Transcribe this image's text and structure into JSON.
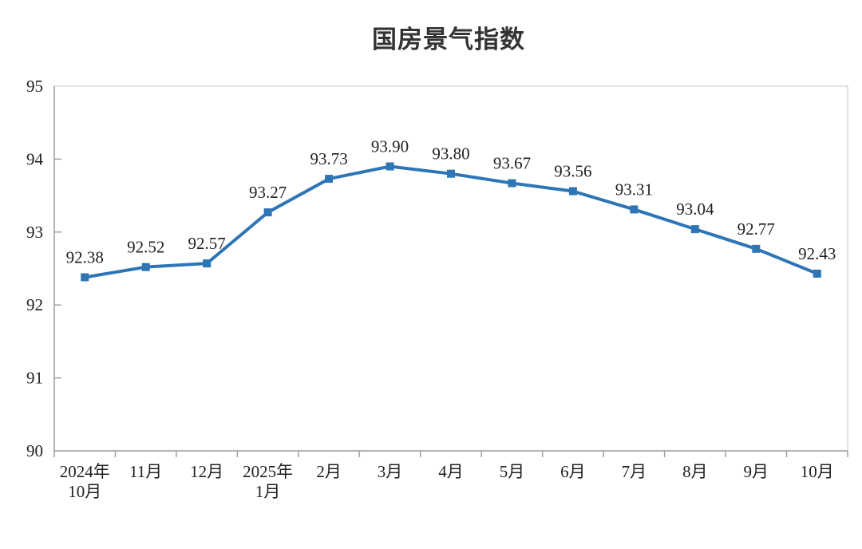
{
  "page": {
    "background": "#ffffff"
  },
  "chart_data": {
    "type": "line",
    "title": "国房景气指数",
    "categories": [
      [
        "2024年",
        "10月"
      ],
      [
        "11月"
      ],
      [
        "12月"
      ],
      [
        "2025年",
        "1月"
      ],
      [
        "2月"
      ],
      [
        "3月"
      ],
      [
        "4月"
      ],
      [
        "5月"
      ],
      [
        "6月"
      ],
      [
        "7月"
      ],
      [
        "8月"
      ],
      [
        "9月"
      ],
      [
        "10月"
      ]
    ],
    "values": [
      92.38,
      92.52,
      92.57,
      93.27,
      93.73,
      93.9,
      93.8,
      93.67,
      93.56,
      93.31,
      93.04,
      92.77,
      92.43
    ],
    "data_labels": [
      "92.38",
      "92.52",
      "92.57",
      "93.27",
      "93.73",
      "93.90",
      "93.80",
      "93.67",
      "93.56",
      "93.31",
      "93.04",
      "92.77",
      "92.43"
    ],
    "ylim": [
      90,
      95
    ],
    "yticks": [
      90,
      91,
      92,
      93,
      94,
      95
    ],
    "xlabel": "",
    "ylabel": "",
    "legend": "none",
    "grid": false,
    "marker": "square",
    "colors": {
      "line": "#2e75b6",
      "marker": "#2e75b6",
      "axis": "#a0a0a0",
      "plot_border": "#d9d9d9",
      "tick": "#a0a0a0",
      "text": "#1f1f1f"
    }
  }
}
